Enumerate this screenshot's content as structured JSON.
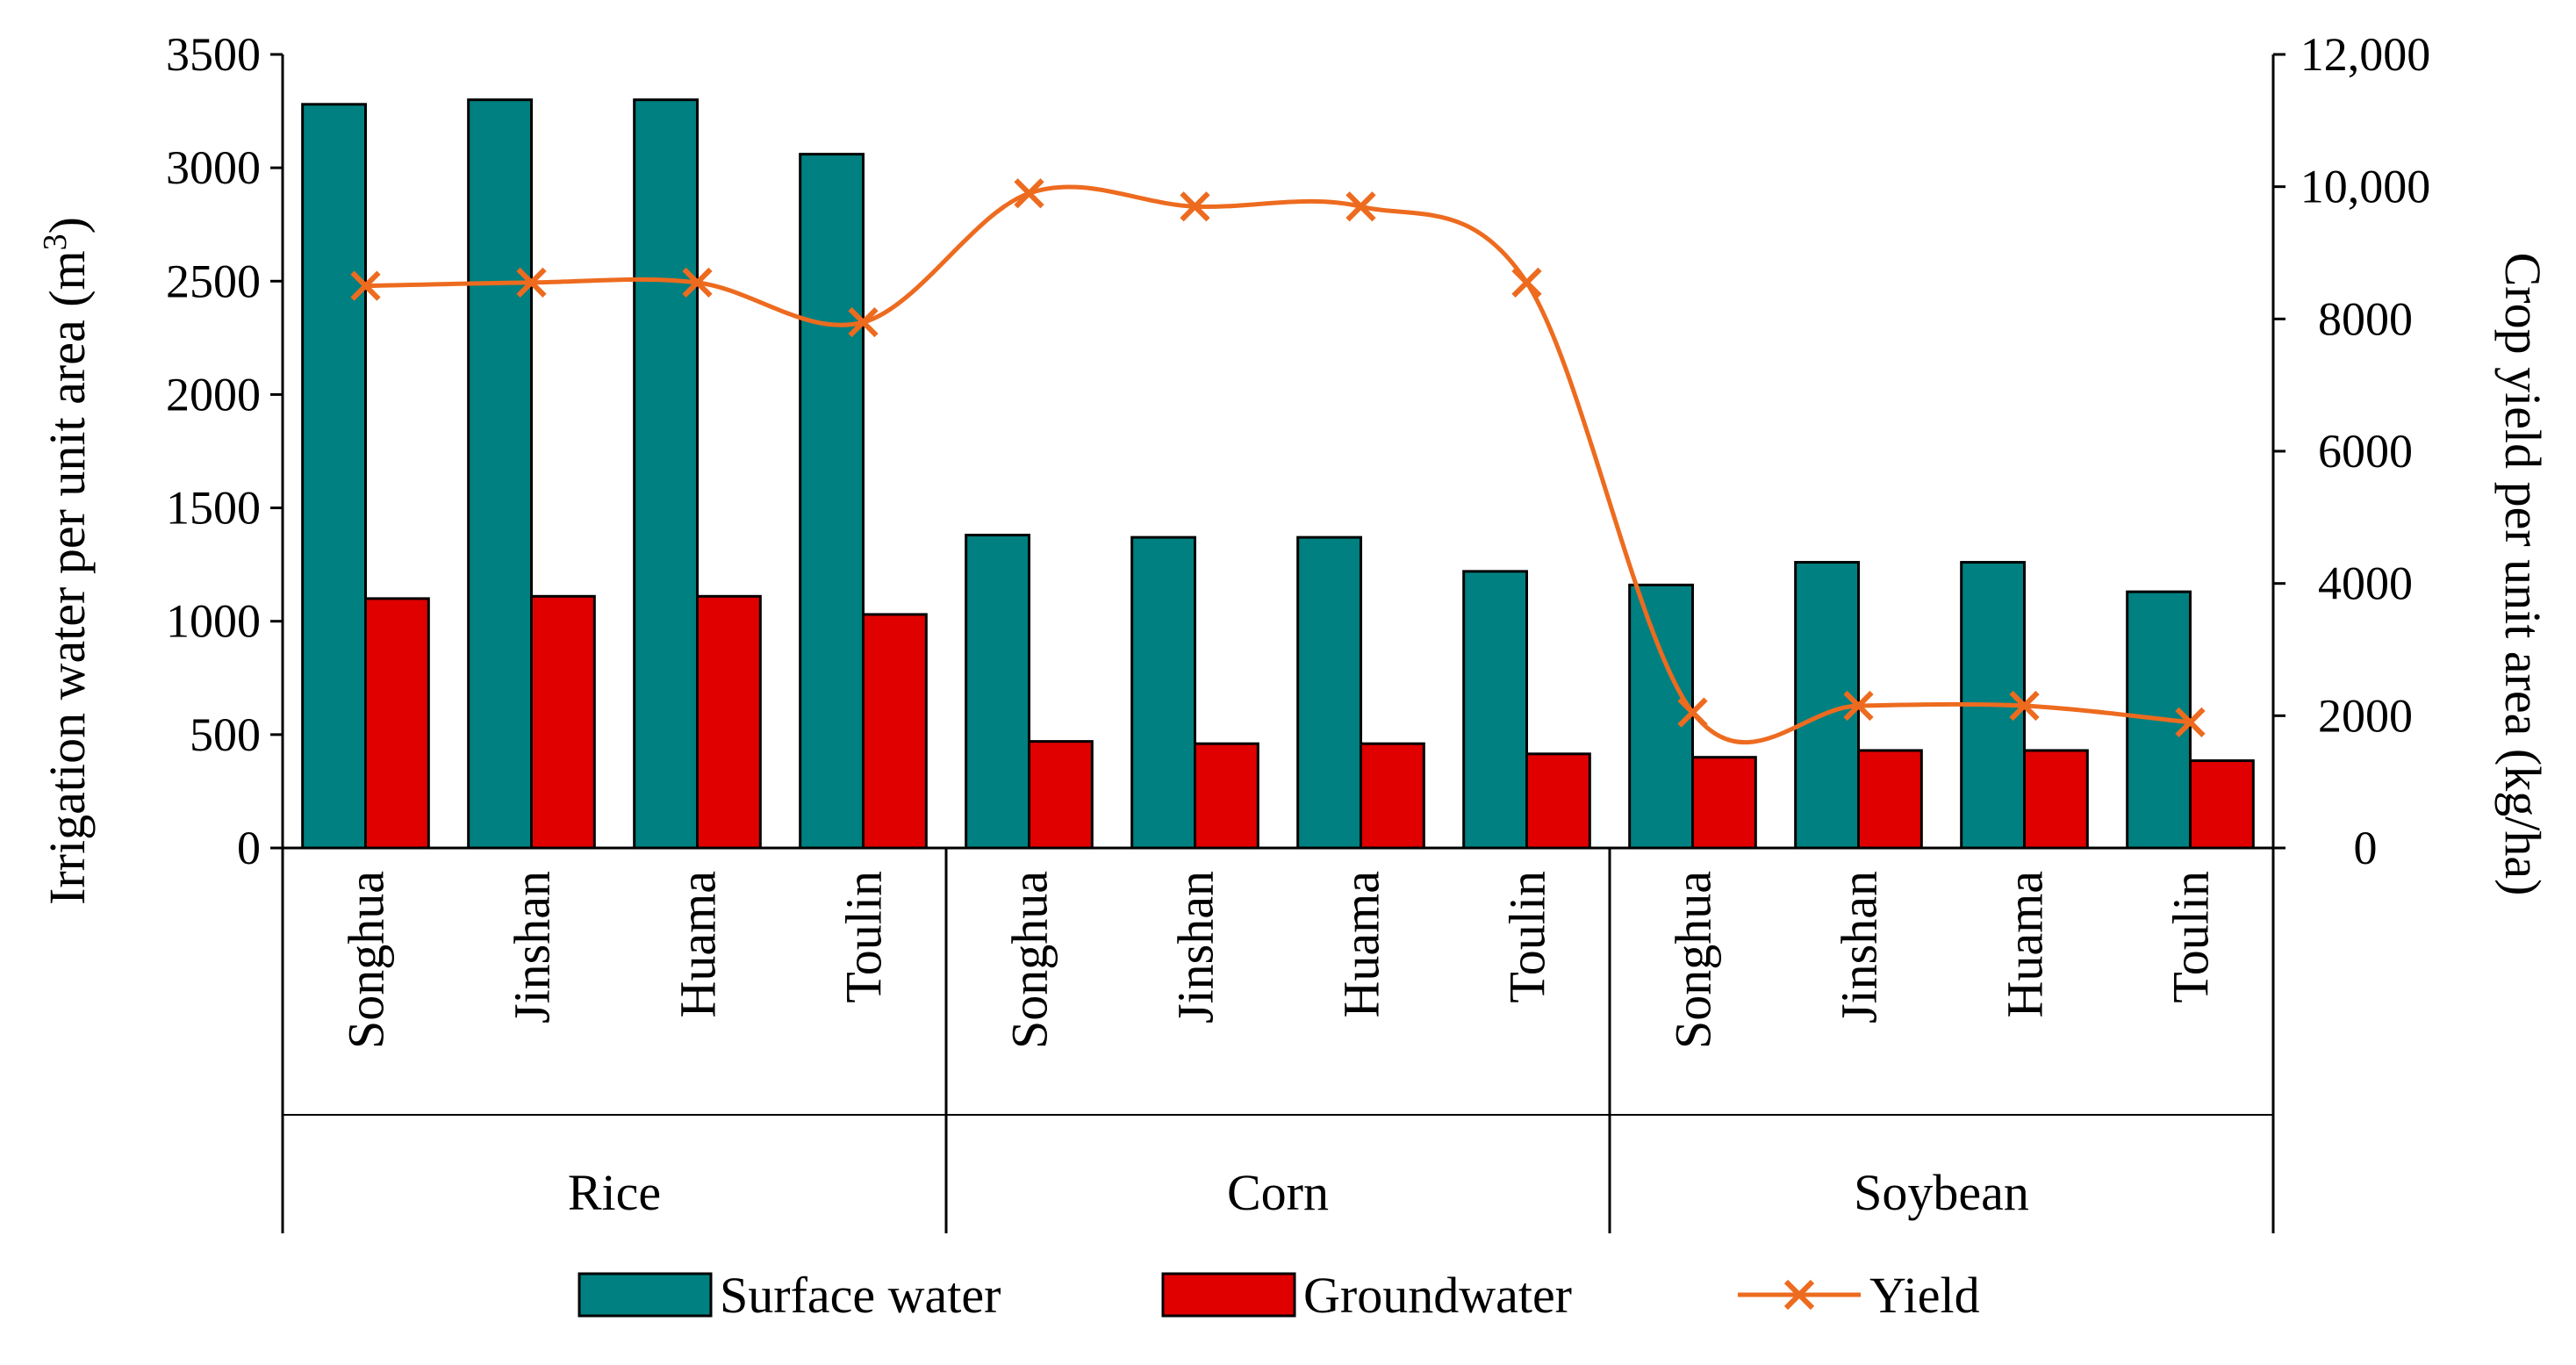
{
  "chart_data": {
    "type": "bar",
    "title": "",
    "groups": [
      {
        "label": "Rice",
        "categories": [
          "Songhua",
          "Jinshan",
          "Huama",
          "Toulin"
        ]
      },
      {
        "label": "Corn",
        "categories": [
          "Songhua",
          "Jinshan",
          "Huama",
          "Toulin"
        ]
      },
      {
        "label": "Soybean",
        "categories": [
          "Songhua",
          "Jinshan",
          "Huama",
          "Toulin"
        ]
      }
    ],
    "series": [
      {
        "name": "Surface water",
        "type": "bar",
        "axis": "left",
        "color": "#008080",
        "values": [
          3280,
          3300,
          3300,
          3060,
          1380,
          1370,
          1370,
          1220,
          1160,
          1260,
          1260,
          1130
        ]
      },
      {
        "name": "Groundwater",
        "type": "bar",
        "axis": "left",
        "color": "#e00000",
        "values": [
          1100,
          1110,
          1110,
          1030,
          470,
          460,
          460,
          415,
          400,
          430,
          430,
          385
        ]
      },
      {
        "name": "Yield",
        "type": "line",
        "axis": "right",
        "color": "#ed6b1f",
        "marker": "x",
        "values": [
          8500,
          8550,
          8550,
          7950,
          9900,
          9700,
          9700,
          8550,
          2050,
          2150,
          2150,
          1900
        ]
      }
    ],
    "ylabel": "Irrigation water per unit area (m³)",
    "ylabel_text": "Irrigation water per unit area (m",
    "ylabel_sup": "3",
    "ylabel_close": ")",
    "y2label": "Crop yield per unit area (kg/ha)",
    "ylim": [
      0,
      3500
    ],
    "y2lim": [
      0,
      12000
    ],
    "yticks": [
      0,
      500,
      1000,
      1500,
      2000,
      2500,
      3000,
      3500
    ],
    "y2ticks": [
      0,
      2000,
      4000,
      6000,
      8000,
      10000,
      12000
    ],
    "y2tick_labels": [
      "0",
      "2000",
      "4000",
      "6000",
      "8000",
      "10,000",
      "12,000"
    ],
    "legend_position": "bottom",
    "grid": false
  }
}
